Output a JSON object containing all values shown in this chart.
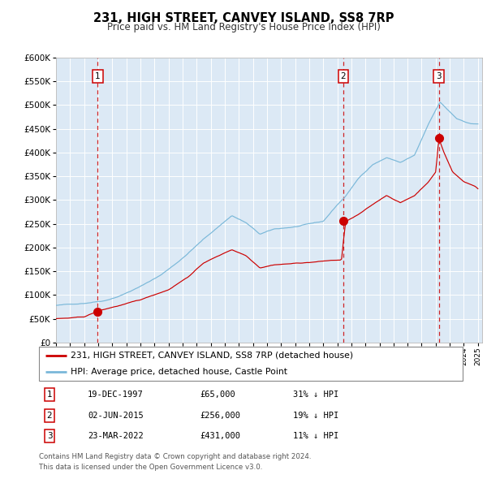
{
  "title": "231, HIGH STREET, CANVEY ISLAND, SS8 7RP",
  "subtitle": "Price paid vs. HM Land Registry's House Price Index (HPI)",
  "legend_line1": "231, HIGH STREET, CANVEY ISLAND, SS8 7RP (detached house)",
  "legend_line2": "HPI: Average price, detached house, Castle Point",
  "sale1_date": "19-DEC-1997",
  "sale1_price": 65000,
  "sale1_hpi": "31% ↓ HPI",
  "sale2_date": "02-JUN-2015",
  "sale2_price": 256000,
  "sale2_hpi": "19% ↓ HPI",
  "sale3_date": "23-MAR-2022",
  "sale3_price": 431000,
  "sale3_hpi": "11% ↓ HPI",
  "footer_line1": "Contains HM Land Registry data © Crown copyright and database right 2024.",
  "footer_line2": "This data is licensed under the Open Government Licence v3.0.",
  "hpi_color": "#7ab8d9",
  "price_color": "#cc0000",
  "bg_color": "#dce9f5",
  "grid_color": "#ffffff",
  "ylim_min": 0,
  "ylim_max": 600000,
  "sale1_year": 1997.97,
  "sale2_year": 2015.42,
  "sale3_year": 2022.22,
  "xstart": 1995,
  "xend": 2025
}
